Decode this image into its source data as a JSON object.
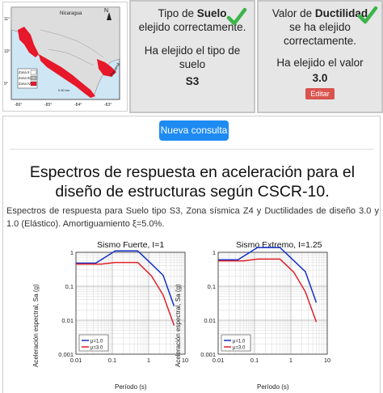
{
  "map": {
    "top_label": "Nicaragua",
    "right_label": "Panamá",
    "north": "N",
    "scale": "0 60 km",
    "zones": [
      "Zona II",
      "Zona III",
      "Zona IV"
    ],
    "bottom_ticks": [
      "-86°",
      "-85°",
      "-84°",
      "-83°"
    ],
    "left_ticks": [
      "11°",
      "10°",
      "9°"
    ],
    "colors": {
      "zone4": "#e6182a",
      "zone3": "#b7b7b7",
      "land": "#dddddd",
      "sea": "#cfe7f5"
    }
  },
  "suelo_card": {
    "line1_pre": "Tipo de ",
    "line1_bold": "Suelo",
    "line2": "elejido correctamente.",
    "line3": "Ha elejido el tipo de suelo",
    "value": "S3"
  },
  "ductilidad_card": {
    "line1_pre": "Valor de ",
    "line1_bold": "Ductilidad",
    "line2": "se ha elejido",
    "line3": "correctamente.",
    "line4": "Ha elejido el valor",
    "value": "3.0",
    "edit_label": "Editar"
  },
  "new_query_button": "Nueva consulta",
  "title": "Espectros de respuesta en aceleración para el diseño de estructuras según CSCR-10.",
  "description": "Espectros de respuesta para Suelo tipo S3, Zona sísmica Z4 y Ductilidades de diseño 3.0 y 1.0 (Elástico). Amortiguamiento ξ=5.0%.",
  "colors": {
    "check": "#3cb54a",
    "mu1": "#1330c9",
    "mu3": "#e0202a",
    "button": "#1e8bf3",
    "edit": "#d9534f"
  },
  "chart_data": [
    {
      "type": "line",
      "title": "Sismo Fuerte, I=1",
      "xlabel": "Período (s)",
      "ylabel": "Aceleración espectral, Sa (g)",
      "x_scale": "log",
      "y_scale": "log",
      "xlim": [
        0.01,
        10
      ],
      "ylim": [
        0.001,
        1.0
      ],
      "x_ticks": [
        "0.01",
        "0.1",
        "1",
        "10"
      ],
      "y_ticks": [
        "1",
        "0.1",
        "0.01",
        "0.001"
      ],
      "legend": "bottom-left",
      "series": [
        {
          "name": "μ=1.0",
          "x": [
            0.01,
            0.035,
            0.12,
            0.5,
            1.2,
            2.5,
            5.0
          ],
          "y": [
            0.48,
            0.48,
            1.1,
            1.1,
            0.45,
            0.21,
            0.026
          ]
        },
        {
          "name": "μ=3.0",
          "x": [
            0.01,
            0.05,
            0.12,
            0.5,
            1.2,
            2.5,
            5.0
          ],
          "y": [
            0.45,
            0.45,
            0.5,
            0.5,
            0.2,
            0.055,
            0.007
          ]
        }
      ]
    },
    {
      "type": "line",
      "title": "Sismo Extremo, I=1.25",
      "xlabel": "Período (s)",
      "ylabel": "Aceleración espectral, Sa (g)",
      "x_scale": "log",
      "y_scale": "log",
      "xlim": [
        0.01,
        10
      ],
      "ylim": [
        0.001,
        1.0
      ],
      "x_ticks": [
        "0.01",
        "0.1",
        "1",
        "10"
      ],
      "y_ticks": [
        "1",
        "0.1",
        "0.01",
        "0.001"
      ],
      "legend": "bottom-left",
      "series": [
        {
          "name": "μ=1.0",
          "x": [
            0.01,
            0.035,
            0.12,
            0.5,
            1.2,
            2.5,
            5.0
          ],
          "y": [
            0.6,
            0.6,
            1.38,
            1.38,
            0.57,
            0.27,
            0.033
          ]
        },
        {
          "name": "μ=3.0",
          "x": [
            0.01,
            0.05,
            0.12,
            0.5,
            1.2,
            2.5,
            5.0
          ],
          "y": [
            0.56,
            0.56,
            0.63,
            0.63,
            0.26,
            0.069,
            0.0088
          ]
        }
      ]
    }
  ]
}
